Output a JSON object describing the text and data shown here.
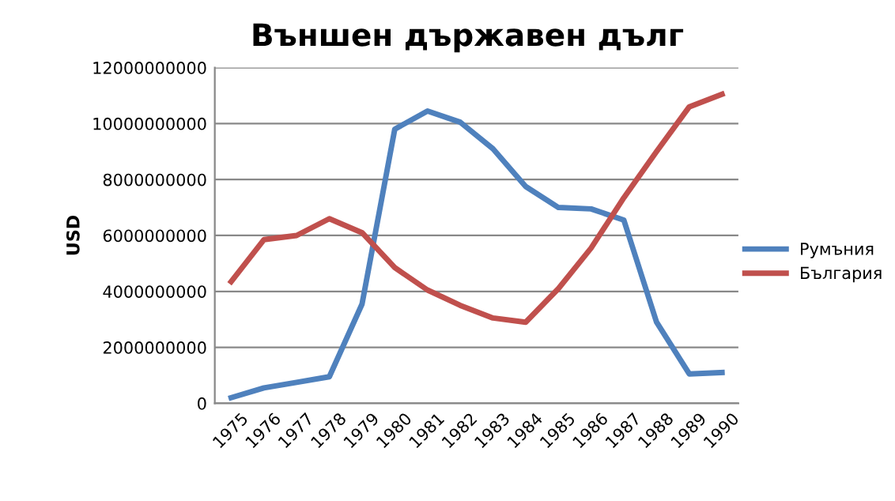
{
  "chart_data": {
    "type": "line",
    "title": "Външен държавен дълг",
    "ylabel": "USD",
    "categories": [
      "1975",
      "1976",
      "1977",
      "1978",
      "1979",
      "1980",
      "1981",
      "1982",
      "1983",
      "1984",
      "1985",
      "1986",
      "1987",
      "1988",
      "1989",
      "1990"
    ],
    "series": [
      {
        "name": "Румъния",
        "color": "#4f81bd",
        "values": [
          200000000,
          550000000,
          750000000,
          950000000,
          3550000000,
          9800000000,
          10450000000,
          10050000000,
          9100000000,
          7750000000,
          7000000000,
          6950000000,
          6550000000,
          2900000000,
          1050000000,
          1100000000
        ]
      },
      {
        "name": "България",
        "color": "#c0504d",
        "values": [
          4350000000,
          5850000000,
          6000000000,
          6600000000,
          6100000000,
          4850000000,
          4050000000,
          3500000000,
          3050000000,
          2900000000,
          4100000000,
          5550000000,
          7350000000,
          9000000000,
          10600000000,
          11050000000
        ]
      }
    ],
    "ylim": [
      0,
      12000000000
    ],
    "yticks": [
      0,
      2000000000,
      4000000000,
      6000000000,
      8000000000,
      10000000000,
      12000000000
    ],
    "grid": "y",
    "legend": "right",
    "marker": "none",
    "line_style": "solid"
  }
}
